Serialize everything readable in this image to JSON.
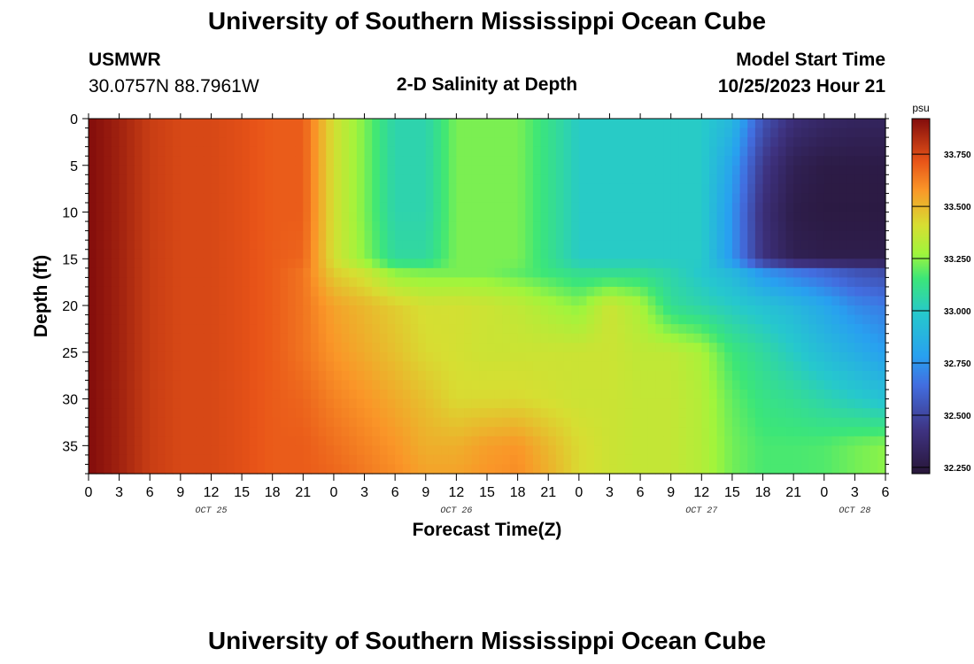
{
  "header": {
    "title": "University of Southern Mississippi Ocean Cube",
    "station": "USMWR",
    "coords": "30.0757N  88.7961W",
    "subtitle": "2-D Salinity at Depth",
    "model_label": "Model Start Time",
    "model_time": "10/25/2023 Hour 21"
  },
  "footer": {
    "title": "University of Southern Mississippi Ocean Cube"
  },
  "chart_data": {
    "type": "heatmap",
    "xlabel": "Forecast Time(Z)",
    "ylabel": "Depth (ft)",
    "x_tick_labels": [
      "0",
      "3",
      "6",
      "9",
      "12",
      "15",
      "18",
      "21",
      "0",
      "3",
      "6",
      "9",
      "12",
      "15",
      "18",
      "21",
      "0",
      "3",
      "6",
      "9",
      "12",
      "15",
      "18",
      "21",
      "0",
      "3",
      "6"
    ],
    "date_labels": [
      {
        "text": "OCT 25",
        "tick_index": 4
      },
      {
        "text": "OCT 26",
        "tick_index": 12
      },
      {
        "text": "OCT 27",
        "tick_index": 20
      },
      {
        "text": "OCT 28",
        "tick_index": 25
      }
    ],
    "xlim_hours": [
      0,
      78
    ],
    "ylim": [
      38,
      0
    ],
    "y_ticks": [
      0,
      5,
      10,
      15,
      20,
      25,
      30,
      35
    ],
    "colorbar": {
      "unit": "psu",
      "ticks": [
        "33.750",
        "33.500",
        "33.250",
        "33.000",
        "32.750",
        "32.500",
        "32.250"
      ],
      "tick_values": [
        33.75,
        33.5,
        33.25,
        33.0,
        32.75,
        32.5,
        32.25
      ],
      "range": [
        32.22,
        33.92
      ]
    },
    "grid_hours": [
      0,
      3,
      6,
      9,
      12,
      15,
      18,
      21,
      24,
      27,
      30,
      33,
      36,
      39,
      42,
      45,
      48,
      51,
      54,
      57,
      60,
      63,
      66,
      69,
      72,
      75,
      78
    ],
    "grid_depths": [
      0,
      5,
      10,
      15,
      16.5,
      20,
      25,
      30,
      35,
      38
    ],
    "values": [
      [
        33.92,
        33.86,
        33.78,
        33.75,
        33.75,
        33.73,
        33.7,
        33.7,
        33.4,
        33.23,
        33.05,
        33.05,
        33.23,
        33.23,
        33.23,
        33.12,
        33.0,
        33.0,
        33.0,
        33.0,
        33.0,
        32.9,
        32.55,
        32.4,
        32.35,
        32.33,
        32.33
      ],
      [
        33.92,
        33.86,
        33.78,
        33.75,
        33.75,
        33.73,
        33.7,
        33.7,
        33.4,
        33.23,
        33.05,
        33.05,
        33.23,
        33.23,
        33.23,
        33.12,
        33.0,
        33.0,
        33.0,
        33.0,
        33.0,
        32.8,
        32.45,
        32.3,
        32.26,
        32.26,
        32.26
      ],
      [
        33.92,
        33.86,
        33.78,
        33.75,
        33.75,
        33.73,
        33.7,
        33.7,
        33.4,
        33.23,
        33.05,
        33.05,
        33.23,
        33.23,
        33.23,
        33.12,
        33.0,
        33.0,
        33.0,
        33.0,
        33.0,
        32.75,
        32.4,
        32.27,
        32.25,
        32.25,
        32.25
      ],
      [
        33.92,
        33.86,
        33.78,
        33.75,
        33.75,
        33.73,
        33.7,
        33.68,
        33.4,
        33.25,
        33.08,
        33.08,
        33.23,
        33.23,
        33.23,
        33.12,
        33.0,
        33.0,
        33.0,
        33.0,
        33.0,
        32.75,
        32.42,
        32.3,
        32.28,
        32.28,
        32.28
      ],
      [
        33.92,
        33.86,
        33.78,
        33.75,
        33.75,
        33.73,
        33.7,
        33.65,
        33.45,
        33.38,
        33.25,
        33.23,
        33.23,
        33.23,
        33.2,
        33.15,
        33.1,
        33.1,
        33.1,
        33.05,
        32.98,
        32.9,
        32.75,
        32.68,
        32.62,
        32.55,
        32.52
      ],
      [
        33.92,
        33.86,
        33.78,
        33.75,
        33.75,
        33.73,
        33.7,
        33.65,
        33.55,
        33.5,
        33.45,
        33.4,
        33.4,
        33.38,
        33.35,
        33.3,
        33.25,
        33.38,
        33.3,
        33.1,
        33.05,
        33.0,
        32.95,
        32.9,
        32.82,
        32.72,
        32.68
      ],
      [
        33.92,
        33.86,
        33.78,
        33.75,
        33.75,
        33.73,
        33.7,
        33.65,
        33.58,
        33.53,
        33.48,
        33.42,
        33.4,
        33.38,
        33.38,
        33.38,
        33.38,
        33.38,
        33.35,
        33.35,
        33.3,
        33.15,
        33.08,
        33.0,
        32.92,
        32.85,
        32.78
      ],
      [
        33.92,
        33.86,
        33.78,
        33.75,
        33.75,
        33.73,
        33.7,
        33.68,
        33.62,
        33.58,
        33.53,
        33.48,
        33.42,
        33.42,
        33.42,
        33.4,
        33.38,
        33.38,
        33.36,
        33.36,
        33.32,
        33.2,
        33.13,
        33.1,
        33.05,
        33.0,
        32.95
      ],
      [
        33.92,
        33.86,
        33.78,
        33.75,
        33.75,
        33.73,
        33.7,
        33.7,
        33.66,
        33.62,
        33.58,
        33.52,
        33.52,
        33.56,
        33.58,
        33.5,
        33.42,
        33.38,
        33.36,
        33.36,
        33.32,
        33.22,
        33.17,
        33.17,
        33.18,
        33.22,
        33.25
      ],
      [
        33.92,
        33.86,
        33.78,
        33.75,
        33.75,
        33.73,
        33.7,
        33.7,
        33.68,
        33.64,
        33.6,
        33.55,
        33.55,
        33.58,
        33.6,
        33.52,
        33.42,
        33.38,
        33.36,
        33.36,
        33.32,
        33.22,
        33.17,
        33.17,
        33.18,
        33.22,
        33.25
      ]
    ]
  }
}
